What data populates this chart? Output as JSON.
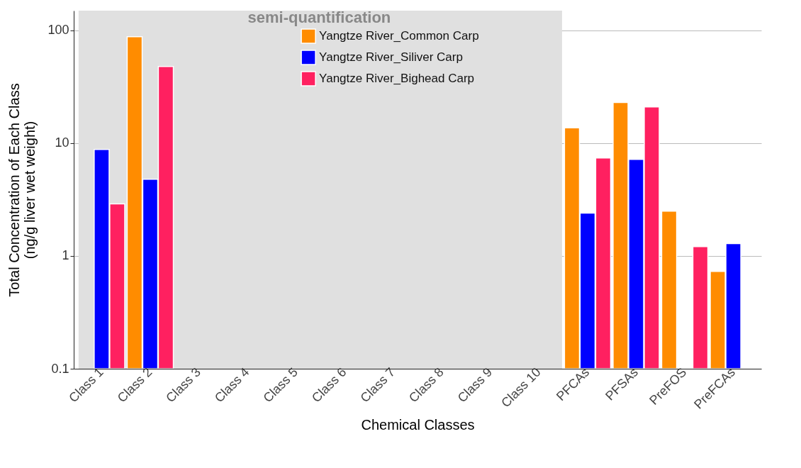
{
  "chart_data": {
    "type": "bar",
    "xlabel": "Chemical Classes",
    "ylabel": "Total Concentration of Each Class\n(ng/g liver wet weight)",
    "categories": [
      "Class 1",
      "Class 2",
      "Class 3",
      "Class 4",
      "Class 5",
      "Class 6",
      "Class 7",
      "Class 8",
      "Class 9",
      "Class 10",
      "PFCAs",
      "PFSAs",
      "PreFOS",
      "PreFCAs"
    ],
    "series": [
      {
        "name": "Yangtze River_Common Carp",
        "color": "#ff8c00",
        "values": [
          null,
          88,
          null,
          null,
          null,
          null,
          null,
          null,
          null,
          null,
          13.7,
          23,
          2.5,
          0.73
        ]
      },
      {
        "name": "Yangtze River_Siliver Carp",
        "color": "#0000ff",
        "values": [
          8.8,
          4.8,
          null,
          null,
          null,
          null,
          null,
          null,
          null,
          null,
          2.4,
          7.2,
          null,
          1.29
        ]
      },
      {
        "name": "Yangtze River_Bighead Carp",
        "color": "#ff2060",
        "values": [
          2.9,
          48,
          null,
          null,
          null,
          null,
          null,
          null,
          null,
          null,
          7.4,
          21,
          1.21,
          null
        ]
      }
    ],
    "log": true,
    "ylim": [
      0.1,
      150
    ],
    "yticks": [
      0.1,
      1,
      10,
      100
    ],
    "grid": "y",
    "legend": "top",
    "bands": [
      {
        "axis": "x",
        "from": "Class 1",
        "to": "Class 10",
        "label": "semi-quantification",
        "color": "#e0e0e0"
      }
    ]
  }
}
